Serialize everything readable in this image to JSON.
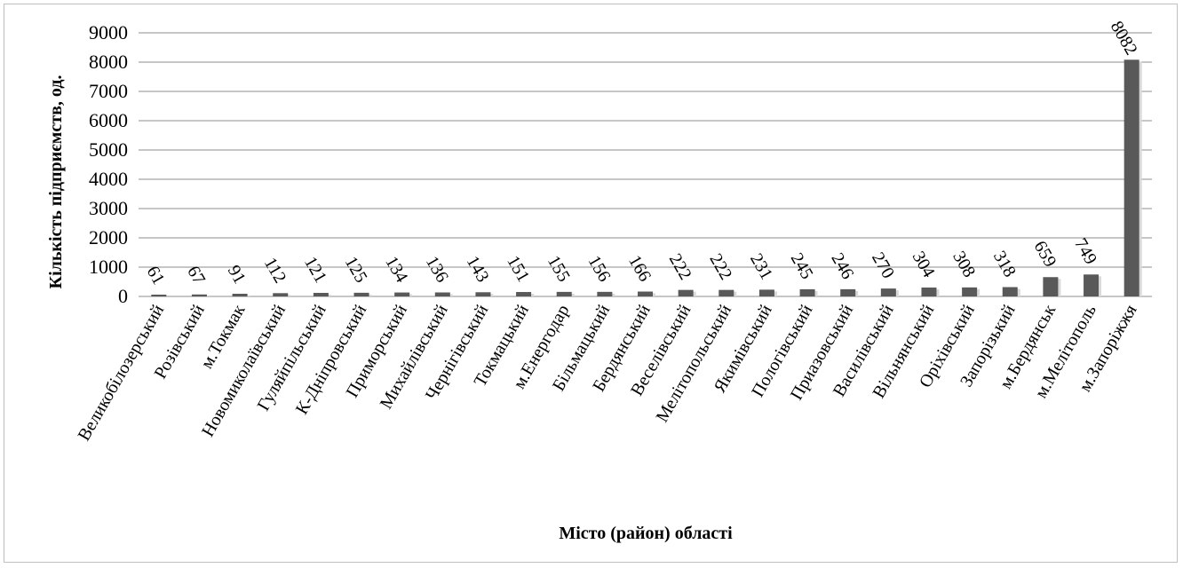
{
  "chart_data": {
    "type": "bar",
    "title": "",
    "xlabel": "Місто (район) області",
    "ylabel": "Кількість підприємств, од.",
    "ylim": [
      0,
      9000
    ],
    "yticks": [
      0,
      1000,
      2000,
      3000,
      4000,
      5000,
      6000,
      7000,
      8000,
      9000
    ],
    "grid": true,
    "legend": "none",
    "bar_color": "#595959",
    "categories": [
      "Великобілозерський",
      "Розівський",
      "м.Токмак",
      "Новомиколаївський",
      "Гуляйпільський",
      "К-Дніпровський",
      "Приморський",
      "Михайлівський",
      "Чернігівський",
      "Токмацький",
      "м.Енергодар",
      "Більмацький",
      "Бердянський",
      "Веселівський",
      "Мелітопольський",
      "Якимівський",
      "Пологівський",
      "Приазовський",
      "Василівський",
      "Вільнянський",
      "Оріхівський",
      "Запорізький",
      "м.Бердянськ",
      "м.Мелітополь",
      "м.Запоріжжя"
    ],
    "values": [
      61,
      67,
      91,
      112,
      121,
      125,
      134,
      136,
      143,
      151,
      155,
      156,
      166,
      222,
      222,
      231,
      245,
      246,
      270,
      304,
      308,
      318,
      659,
      749,
      8082
    ]
  }
}
